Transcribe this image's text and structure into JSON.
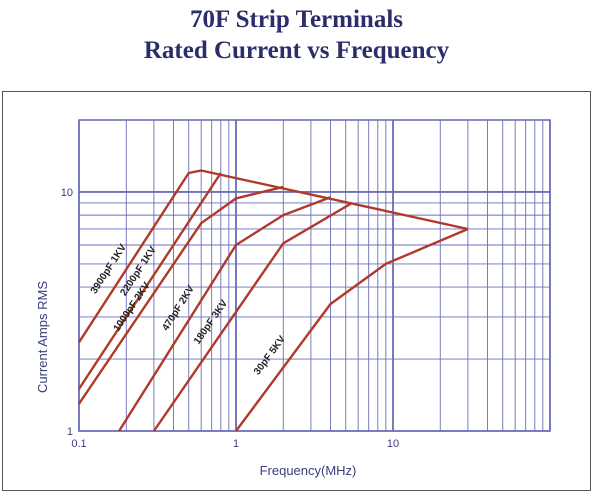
{
  "title": {
    "line1": "70F Strip Terminals",
    "line2": "Rated Current vs Frequency"
  },
  "colors": {
    "grid": "#6b6fb8",
    "series": "#b03a2a",
    "text": "#3a3d7a"
  },
  "chart_data": {
    "type": "line",
    "title": "70F Strip Terminals Rated Current vs Frequency",
    "xlabel": "Frequency(MHz)",
    "ylabel": "Current Amps RMS",
    "xscale": "log",
    "yscale": "log",
    "xlim": [
      0.1,
      100
    ],
    "ylim": [
      1,
      20
    ],
    "x_tick_labels": [
      {
        "value": 0.1,
        "label": "0.1"
      },
      {
        "value": 1,
        "label": "1"
      },
      {
        "value": 10,
        "label": "10"
      }
    ],
    "y_tick_labels": [
      {
        "value": 1,
        "label": "1"
      },
      {
        "value": 10,
        "label": "10"
      }
    ],
    "grid": true,
    "series": [
      {
        "name": "3900pF 1KV",
        "points": [
          [
            0.1,
            2.35
          ],
          [
            0.5,
            12.0
          ],
          [
            0.6,
            12.3
          ],
          [
            30,
            7.0
          ]
        ]
      },
      {
        "name": "2200pF 1KV",
        "points": [
          [
            0.1,
            1.5
          ],
          [
            0.8,
            12.0
          ]
        ]
      },
      {
        "name": "1000pF 2KV",
        "points": [
          [
            0.1,
            1.3
          ],
          [
            0.6,
            7.4
          ],
          [
            1.0,
            9.4
          ],
          [
            2.0,
            10.5
          ]
        ]
      },
      {
        "name": "470pF 2KV",
        "points": [
          [
            0.18,
            1.0
          ],
          [
            1.0,
            6.0
          ],
          [
            2.0,
            8.0
          ],
          [
            4.0,
            9.5
          ]
        ]
      },
      {
        "name": "180pF 3KV",
        "points": [
          [
            0.3,
            1.0
          ],
          [
            2.0,
            6.1
          ],
          [
            5.5,
            9.0
          ]
        ]
      },
      {
        "name": "30pF 5KV",
        "points": [
          [
            1.0,
            1.0
          ],
          [
            4.0,
            3.4
          ],
          [
            9.0,
            5.0
          ],
          [
            30,
            7.0
          ]
        ]
      }
    ]
  }
}
